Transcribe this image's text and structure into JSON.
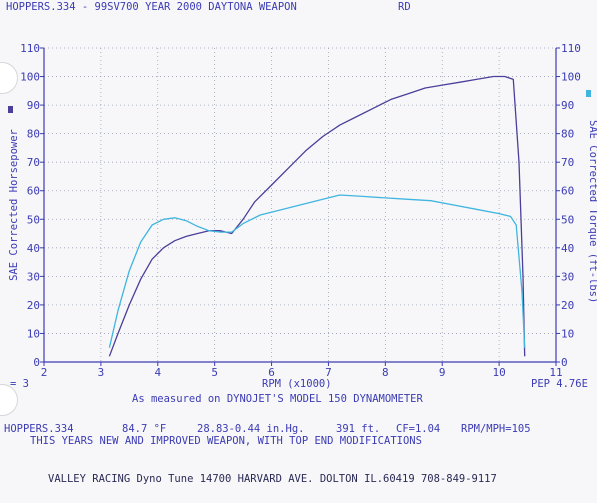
{
  "header": {
    "title_left": "HOPPERS.334 - 99SV700 YEAR 2000 DAYTONA WEAPON",
    "title_right": "RD"
  },
  "axes": {
    "left_label": "SAE Corrected Horsepower",
    "right_label": "SAE Corrected Torque (ft-lbs)",
    "x_label": "RPM (x1000)"
  },
  "footer": {
    "smoothing": "= 3",
    "pep": "PEP 4.76E",
    "measured": "As measured on DYNOJET'S MODEL 150 DYNAMOMETER",
    "run_name": "HOPPERS.334",
    "temp": "84.7 °F",
    "baro": "28.83-0.44 in.Hg.",
    "altitude": "391 ft.",
    "cf": "CF=1.04",
    "rpm_mph": "RPM/MPH=105",
    "note": "THIS YEARS NEW AND IMPROVED WEAPON, WITH TOP END MODIFICATIONS",
    "shop": "VALLEY RACING Dyno Tune 14700 HARVARD AVE. DOLTON IL.60419 708-849-9117"
  },
  "colors": {
    "grid": "#9aa0b4",
    "axis": "#3b3bb5",
    "hp_line": "#4a3f9a",
    "torque_line": "#3fb5e0",
    "text": "#3b3bb5"
  },
  "chart_data": {
    "type": "line",
    "xlabel": "RPM (x1000)",
    "ylabel": "SAE Corrected Horsepower",
    "y2label": "SAE Corrected Torque (ft-lbs)",
    "xlim": [
      2,
      11
    ],
    "ylim": [
      0,
      110
    ],
    "x_ticks": [
      "2",
      "3",
      "4",
      "5",
      "6",
      "7",
      "8",
      "9",
      "10",
      "11"
    ],
    "y_ticks": [
      "0",
      "10",
      "20",
      "30",
      "40",
      "50",
      "60",
      "70",
      "80",
      "90",
      "100",
      "110"
    ],
    "grid": true,
    "series": [
      {
        "key": "hp",
        "axis": "left",
        "x": [
          3.15,
          3.3,
          3.5,
          3.7,
          3.9,
          4.1,
          4.3,
          4.5,
          4.7,
          4.9,
          5.1,
          5.3,
          5.5,
          5.7,
          6.0,
          6.3,
          6.6,
          6.9,
          7.2,
          7.5,
          7.8,
          8.1,
          8.4,
          8.7,
          9.0,
          9.3,
          9.6,
          9.9,
          10.1,
          10.25,
          10.35,
          10.42,
          10.45
        ],
        "y": [
          2,
          10,
          20,
          29,
          36,
          40,
          42.5,
          44,
          45,
          46,
          46,
          45,
          50,
          56,
          62,
          68,
          74,
          79,
          83,
          86,
          89,
          92,
          94,
          96,
          97,
          98,
          99,
          100,
          100,
          99,
          70,
          30,
          2
        ]
      },
      {
        "key": "torque",
        "axis": "right",
        "x": [
          3.15,
          3.3,
          3.5,
          3.7,
          3.9,
          4.1,
          4.3,
          4.5,
          4.7,
          4.9,
          5.1,
          5.3,
          5.5,
          5.8,
          6.1,
          6.5,
          6.9,
          7.2,
          7.6,
          8.0,
          8.4,
          8.8,
          9.2,
          9.6,
          10.0,
          10.2,
          10.3,
          10.4,
          10.45
        ],
        "y": [
          5,
          18,
          32,
          42,
          48,
          50,
          50.5,
          49.5,
          47.5,
          46,
          45.5,
          45.5,
          48.5,
          51.5,
          53,
          55,
          57,
          58.5,
          58,
          57.5,
          57,
          56.5,
          55,
          53.5,
          52,
          51,
          48,
          25,
          5
        ]
      }
    ]
  }
}
